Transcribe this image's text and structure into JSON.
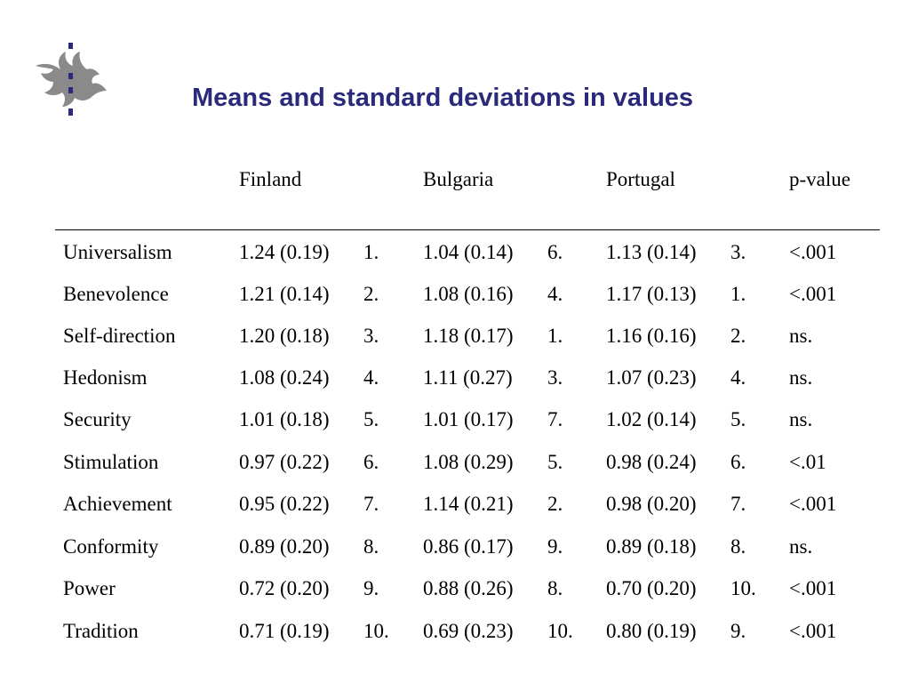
{
  "slide": {
    "title": "Means and standard deviations in values"
  },
  "table": {
    "headers": {
      "finland": "Finland",
      "bulgaria": "Bulgaria",
      "portugal": "Portugal",
      "pvalue": "p-value"
    },
    "rows": [
      {
        "name": "Universalism",
        "fin": "1.24 (0.19)",
        "fin_rank": "1.",
        "bul": "1.04 (0.14)",
        "bul_rank": "6.",
        "por": "1.13 (0.14)",
        "por_rank": "3.",
        "p": "<.001"
      },
      {
        "name": "Benevolence",
        "fin": "1.21 (0.14)",
        "fin_rank": "2.",
        "bul": "1.08 (0.16)",
        "bul_rank": "4.",
        "por": "1.17 (0.13)",
        "por_rank": "1.",
        "p": "<.001"
      },
      {
        "name": "Self-direction",
        "fin": "1.20 (0.18)",
        "fin_rank": "3.",
        "bul": "1.18 (0.17)",
        "bul_rank": "1.",
        "por": "1.16 (0.16)",
        "por_rank": "2.",
        "p": "ns."
      },
      {
        "name": "Hedonism",
        "fin": "1.08 (0.24)",
        "fin_rank": "4.",
        "bul": "1.11 (0.27)",
        "bul_rank": "3.",
        "por": "1.07 (0.23)",
        "por_rank": "4.",
        "p": "ns."
      },
      {
        "name": "Security",
        "fin": "1.01 (0.18)",
        "fin_rank": "5.",
        "bul": "1.01 (0.17)",
        "bul_rank": "7.",
        "por": "1.02 (0.14)",
        "por_rank": "5.",
        "p": "ns."
      },
      {
        "name": "Stimulation",
        "fin": "0.97 (0.22)",
        "fin_rank": "6.",
        "bul": "1.08 (0.29)",
        "bul_rank": "5.",
        "por": "0.98 (0.24)",
        "por_rank": "6.",
        "p": "<.01"
      },
      {
        "name": "Achievement",
        "fin": "0.95 (0.22)",
        "fin_rank": "7.",
        "bul": "1.14 (0.21)",
        "bul_rank": "2.",
        "por": "0.98 (0.20)",
        "por_rank": "7.",
        "p": "<.001"
      },
      {
        "name": "Conformity",
        "fin": "0.89 (0.20)",
        "fin_rank": "8.",
        "bul": "0.86 (0.17)",
        "bul_rank": "9.",
        "por": "0.89 (0.18)",
        "por_rank": "8.",
        "p": "ns."
      },
      {
        "name": "Power",
        "fin": "0.72 (0.20)",
        "fin_rank": "9.",
        "bul": "0.88 (0.26)",
        "bul_rank": "8.",
        "por": "0.70 (0.20)",
        "por_rank": "10.",
        "p": "<.001"
      },
      {
        "name": "Tradition",
        "fin": "0.71 (0.19)",
        "fin_rank": "10.",
        "bul": "0.69 (0.23)",
        "bul_rank": "10.",
        "por": "0.80 (0.19)",
        "por_rank": "9.",
        "p": "<.001"
      }
    ]
  },
  "colors": {
    "title": "#2b2a7a",
    "logo_flame": "#8a8a8a",
    "logo_dots": "#2b2a7a"
  },
  "icons": {
    "logo": "university-flame-logo-icon"
  }
}
